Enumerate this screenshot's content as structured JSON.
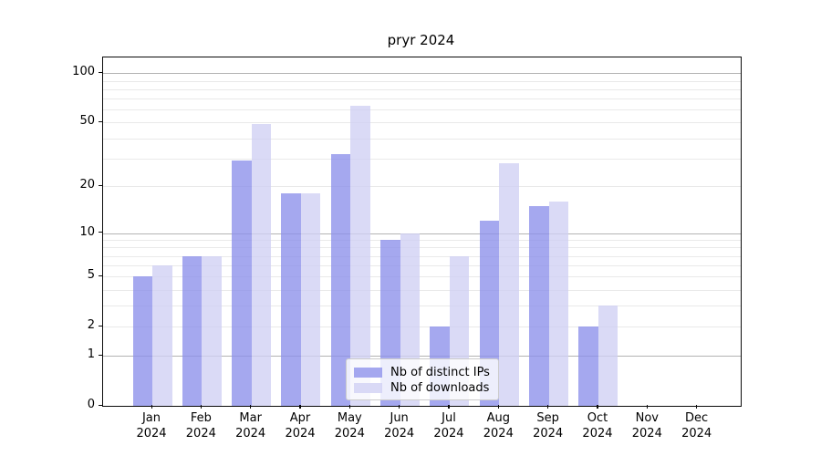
{
  "chart_data": {
    "type": "bar",
    "title": "pryr 2024",
    "categories": [
      "Jan 2024",
      "Feb 2024",
      "Mar 2024",
      "Apr 2024",
      "May 2024",
      "Jun 2024",
      "Jul 2024",
      "Aug 2024",
      "Sep 2024",
      "Oct 2024",
      "Nov 2024",
      "Dec 2024"
    ],
    "series": [
      {
        "name": "Nb of distinct IPs",
        "color": "rgba(140,143,235,0.78)",
        "values": [
          5,
          7,
          29,
          18,
          32,
          9,
          2,
          12,
          15,
          2,
          0,
          0
        ]
      },
      {
        "name": "Nb of downloads",
        "color": "rgba(208,208,244,0.78)",
        "values": [
          6,
          7,
          49,
          18,
          63,
          10,
          7,
          28,
          16,
          3,
          0,
          0
        ]
      }
    ],
    "yscale": "log1p",
    "ylim": [
      0,
      124
    ],
    "yticks": [
      0,
      1,
      2,
      5,
      10,
      20,
      50,
      100
    ],
    "gridlines": {
      "decade": [
        1,
        10,
        100
      ],
      "light": [
        2,
        3,
        4,
        5,
        6,
        7,
        8,
        9,
        20,
        30,
        40,
        50,
        60,
        70,
        80,
        90
      ]
    },
    "grid_colors": {
      "decade": "#b3b3b3",
      "light": "#e9e9e9"
    },
    "legend": {
      "position": "lower center",
      "items": [
        {
          "label": "Nb of distinct IPs"
        },
        {
          "label": "Nb of downloads"
        }
      ]
    },
    "grid": true
  }
}
